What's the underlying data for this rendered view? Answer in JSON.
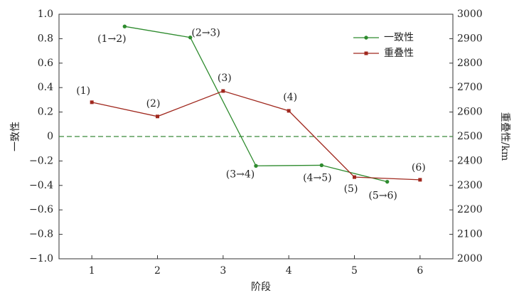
{
  "chart_data": {
    "type": "line",
    "x_label": "阶段",
    "y_label": "一致性",
    "y2_label": "重叠性/km",
    "xlim": [
      0.5,
      6.5
    ],
    "xticks": [
      1,
      2,
      3,
      4,
      5,
      6
    ],
    "ylim": [
      -1,
      1
    ],
    "yticks": [
      {
        "value": -1,
        "label": "−1.0"
      },
      {
        "value": -0.8,
        "label": "−0.8"
      },
      {
        "value": -0.6,
        "label": "−0.6"
      },
      {
        "value": -0.4,
        "label": "−0.4"
      },
      {
        "value": -0.2,
        "label": "−0.2"
      },
      0,
      0.2,
      0.4,
      0.6,
      0.8,
      {
        "value": 1,
        "label": "1.0"
      }
    ],
    "y2lim": [
      2000,
      3000
    ],
    "y2ticks": [
      2000,
      2100,
      2200,
      2300,
      2400,
      2500,
      2600,
      2700,
      2800,
      2900,
      3000
    ],
    "hline": 0,
    "hline_color": "#3a8a3a",
    "legend": "upper right",
    "series": [
      {
        "name": "一致性",
        "color": "#2e8b2e",
        "x": [
          1.5,
          2.5,
          3.5,
          4.5,
          5.5
        ],
        "values": [
          0.9,
          0.81,
          -0.24,
          -0.235,
          -0.37
        ],
        "point_labels": [
          "(1→2)",
          "(2→3)",
          "(3→4)",
          "(4→5)",
          "(5→6)"
        ]
      },
      {
        "name": "重叠性",
        "color": "#a0281e",
        "axis": "y2",
        "x": [
          1,
          2,
          3,
          4,
          5,
          6
        ],
        "values": [
          2640,
          2582,
          2686,
          2605,
          2334,
          2323
        ],
        "point_labels": [
          "(1)",
          "(2)",
          "(3)",
          "(4)",
          "(5)",
          "(6)"
        ]
      }
    ]
  }
}
